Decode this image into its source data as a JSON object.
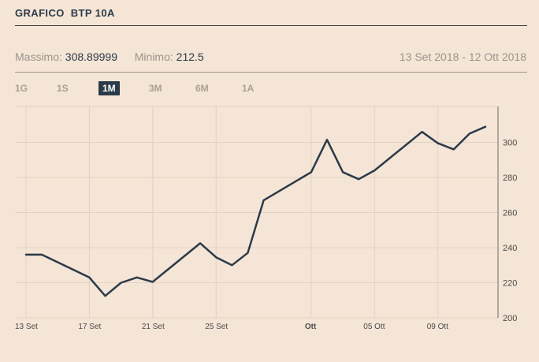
{
  "header": {
    "title": "GRAFICO  BTP 10A"
  },
  "stats": {
    "max_label": "Massimo:",
    "max_value": "308.89999",
    "min_label": "Minimo:",
    "min_value": "212.5",
    "date_range": "13 Set 2018 - 12 Ott 2018"
  },
  "periods": [
    {
      "label": "1G",
      "active": false
    },
    {
      "label": "1S",
      "active": false
    },
    {
      "label": "1M",
      "active": true
    },
    {
      "label": "3M",
      "active": false
    },
    {
      "label": "6M",
      "active": false
    },
    {
      "label": "1A",
      "active": false
    }
  ],
  "colors": {
    "background": "#f5e5d6",
    "line": "#2b3a48",
    "grid": "#e2d2c3"
  },
  "chart_data": {
    "type": "line",
    "xlim": [
      "2018-09-13",
      "2018-10-12"
    ],
    "ylim": [
      200,
      320
    ],
    "yticks": [
      200,
      220,
      240,
      260,
      280,
      300
    ],
    "xticks": [
      {
        "date": "2018-09-13",
        "label": "13 Set",
        "bold": false
      },
      {
        "date": "2018-09-17",
        "label": "17 Set",
        "bold": false
      },
      {
        "date": "2018-09-21",
        "label": "21 Set",
        "bold": false
      },
      {
        "date": "2018-09-25",
        "label": "25 Set",
        "bold": false
      },
      {
        "date": "2018-10-01",
        "label": "Ott",
        "bold": true
      },
      {
        "date": "2018-10-05",
        "label": "05 Ott",
        "bold": false
      },
      {
        "date": "2018-10-09",
        "label": "09 Ott",
        "bold": false
      }
    ],
    "grid": true,
    "series": [
      {
        "x": [
          "2018-09-13",
          "2018-09-14",
          "2018-09-17",
          "2018-09-18",
          "2018-09-19",
          "2018-09-20",
          "2018-09-21",
          "2018-09-24",
          "2018-09-25",
          "2018-09-26",
          "2018-09-27",
          "2018-09-28",
          "2018-10-01",
          "2018-10-02",
          "2018-10-03",
          "2018-10-04",
          "2018-10-05",
          "2018-10-08",
          "2018-10-09",
          "2018-10-10",
          "2018-10-11",
          "2018-10-12"
        ],
        "values": [
          236,
          236,
          223,
          212.5,
          220,
          223,
          220.5,
          242.5,
          234.5,
          230,
          237,
          267,
          283,
          301.5,
          283,
          279,
          284,
          306,
          299.5,
          296,
          305,
          308.9
        ]
      }
    ]
  }
}
